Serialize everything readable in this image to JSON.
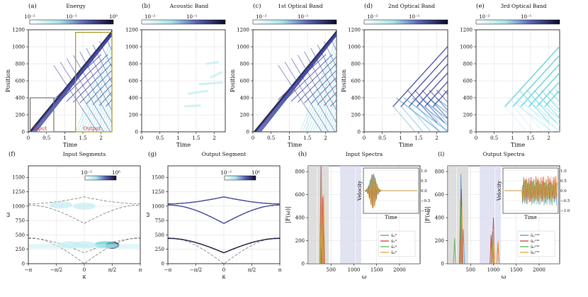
{
  "colors": {
    "dark": "#0d0d30",
    "mid": "#3a3f9e",
    "light": "#5fd0d8",
    "faint": "#c6eef2",
    "red": "#cc3333",
    "grid": "#dcdcdc",
    "shade_gray": "#d6d6d6",
    "shade_blue": "#d9dcf0"
  },
  "chart_data": [
    {
      "id": "a",
      "panel_label": "(a)",
      "title": "Energy",
      "type": "heatmap",
      "colorbar": {
        "ticks": [
          "10⁻²",
          "10⁻¹",
          "10⁰"
        ],
        "scale": "log",
        "range": [
          0.01,
          1
        ]
      },
      "xlabel": "Time",
      "ylabel": "Position",
      "xlim": [
        0,
        2.3
      ],
      "ylim": [
        0,
        1200
      ],
      "xticks": [
        "0",
        "0.5",
        "1",
        "1.5",
        "2"
      ],
      "yticks": [
        "0",
        "200",
        "400",
        "600",
        "800",
        "1000",
        "1200"
      ],
      "annotations": [
        "Input",
        "Output"
      ],
      "boxes": [
        {
          "t0": 0.05,
          "t1": 0.7,
          "p0": 0,
          "p1": 400,
          "color": "gray"
        },
        {
          "t0": 1.3,
          "t1": 2.3,
          "p0": 0,
          "p1": 1170,
          "color": "olive"
        }
      ]
    },
    {
      "id": "b",
      "panel_label": "(b)",
      "title": "Acoustic Band",
      "type": "heatmap",
      "colorbar": {
        "ticks": [
          "10⁻²",
          "10⁻¹"
        ],
        "scale": "log"
      },
      "xlabel": "Time",
      "ylabel": "",
      "xlim": [
        0,
        2.3
      ],
      "ylim": [
        0,
        1200
      ],
      "xticks": [
        "0",
        "0.5",
        "1",
        "1.5",
        "2"
      ],
      "yticks": [
        "0",
        "200",
        "400",
        "600",
        "800",
        "1000",
        "1200"
      ]
    },
    {
      "id": "c",
      "panel_label": "(c)",
      "title": "1st Optical Band",
      "type": "heatmap",
      "colorbar": {
        "ticks": [
          "10⁻²",
          "10⁻¹"
        ],
        "scale": "log"
      },
      "xlabel": "Time",
      "ylabel": "Position",
      "xlim": [
        0,
        2.3
      ],
      "ylim": [
        0,
        1200
      ],
      "xticks": [
        "0",
        "0.5",
        "1",
        "1.5",
        "2"
      ],
      "yticks": [
        "0",
        "200",
        "400",
        "600",
        "800",
        "1000",
        "1200"
      ]
    },
    {
      "id": "d",
      "panel_label": "(d)",
      "title": "2nd Optical Band",
      "type": "heatmap",
      "colorbar": {
        "ticks": [
          "10⁻²",
          "10⁻¹"
        ],
        "scale": "log"
      },
      "xlabel": "Time",
      "ylabel": "Position",
      "xlim": [
        0,
        2.3
      ],
      "ylim": [
        0,
        1200
      ],
      "xticks": [
        "0",
        "0.5",
        "1",
        "1.5",
        "2"
      ],
      "yticks": [
        "0",
        "200",
        "400",
        "600",
        "800",
        "1000",
        "1200"
      ]
    },
    {
      "id": "e",
      "panel_label": "(e)",
      "title": "3rd Optical Band",
      "type": "heatmap",
      "colorbar": {
        "ticks": [
          "10⁻²",
          "10⁻¹"
        ],
        "scale": "log"
      },
      "xlabel": "Time",
      "ylabel": "",
      "xlim": [
        0,
        2.3
      ],
      "ylim": [
        0,
        1200
      ],
      "xticks": [
        "0",
        "0.5",
        "1",
        "1.5",
        "2"
      ],
      "yticks": [
        "0",
        "200",
        "400",
        "600",
        "800",
        "1000",
        "1200"
      ]
    },
    {
      "id": "f",
      "panel_label": "(f)",
      "title": "Input Segments",
      "type": "heatmap",
      "colorbar": {
        "ticks": [
          "10⁻²",
          "10⁶"
        ],
        "scale": "log"
      },
      "xlabel": "κ",
      "ylabel": "ω",
      "xlim": [
        -3.1416,
        3.1416
      ],
      "ylim": [
        0,
        1700
      ],
      "xticks": [
        "−π",
        "−π/2",
        "0",
        "π/2",
        "π"
      ],
      "yticks": [
        "0",
        "250",
        "500",
        "750",
        "1000",
        "1250",
        "1500"
      ],
      "dispersion_bands": [
        {
          "at_zero": 0,
          "at_pi": 450
        },
        {
          "at_zero": 190,
          "at_pi": 440
        },
        {
          "at_zero": 700,
          "at_pi": 1020
        },
        {
          "at_zero": 1160,
          "at_pi": 1040
        }
      ],
      "hotspots": [
        {
          "kappa": 1.57,
          "omega": 320,
          "level": "dark"
        },
        {
          "kappa": 1.2,
          "omega": 330,
          "level": "light"
        },
        {
          "kappa": 0.0,
          "omega": 330,
          "level": "faint"
        },
        {
          "kappa": -0.8,
          "omega": 330,
          "level": "faint"
        },
        {
          "kappa": 0.0,
          "omega": 1000,
          "level": "faint"
        },
        {
          "kappa": -1.3,
          "omega": 1020,
          "level": "faint"
        }
      ]
    },
    {
      "id": "g",
      "panel_label": "(g)",
      "title": "Output Segment",
      "type": "heatmap",
      "colorbar": {
        "ticks": [
          "10⁻²",
          "10⁶"
        ],
        "scale": "log"
      },
      "xlabel": "κ",
      "ylabel": "ω",
      "xlim": [
        -3.1416,
        3.1416
      ],
      "ylim": [
        0,
        1700
      ],
      "xticks": [
        "−π",
        "−π/2",
        "0",
        "π/2",
        "π"
      ],
      "yticks": [
        "0",
        "250",
        "500",
        "750",
        "1000",
        "1250",
        "1500"
      ]
    },
    {
      "id": "h",
      "panel_label": "(h)",
      "title": "Input Spectra",
      "type": "line",
      "xlabel": "ω",
      "ylabel": "|F(ω)|",
      "xlim": [
        0,
        2450
      ],
      "ylim": [
        0,
        850
      ],
      "xticks": [
        "500",
        "1000",
        "1500",
        "2000"
      ],
      "yticks": [
        "0",
        "200",
        "400",
        "600",
        "800"
      ],
      "shaded_bands": [
        {
          "from": 0,
          "to": 190,
          "color": "gray"
        },
        {
          "from": 200,
          "to": 450,
          "color": "gray"
        },
        {
          "from": 700,
          "to": 1030,
          "color": "blue"
        },
        {
          "from": 1040,
          "to": 1160,
          "color": "blue"
        }
      ],
      "series": [
        {
          "name": "û₁⁰",
          "color": "#4c8fc7",
          "peaks": [
            [
              280,
              850
            ],
            [
              330,
              400
            ]
          ]
        },
        {
          "name": "û₂⁰",
          "color": "#cc3333",
          "peaks": [
            [
              285,
              850
            ],
            [
              320,
              580
            ]
          ]
        },
        {
          "name": "û₃⁰",
          "color": "#55aa55",
          "peaks": [
            [
              290,
              400
            ],
            [
              300,
              200
            ]
          ]
        },
        {
          "name": "û₄⁰",
          "color": "#f0a030",
          "peaks": [
            [
              290,
              850
            ],
            [
              340,
              600
            ]
          ]
        }
      ],
      "inset": {
        "xlabel": "Time",
        "ylabel": "Velocity",
        "yticks": [
          "1.0",
          "0.5",
          "0.0",
          "−0.5",
          "−1.0"
        ],
        "ylim": [
          -1,
          1
        ]
      }
    },
    {
      "id": "i",
      "panel_label": "(i)",
      "title": "Output Spectra",
      "type": "line",
      "xlabel": "ω",
      "ylabel": "|F(ω)|",
      "xlim": [
        0,
        2450
      ],
      "ylim": [
        0,
        850
      ],
      "xticks": [
        "500",
        "1000",
        "1500",
        "2000"
      ],
      "yticks": [
        "0",
        "200",
        "400",
        "600",
        "800"
      ],
      "shaded_bands": [
        {
          "from": 0,
          "to": 190,
          "color": "gray"
        },
        {
          "from": 200,
          "to": 450,
          "color": "gray"
        },
        {
          "from": 700,
          "to": 1030,
          "color": "blue"
        },
        {
          "from": 1040,
          "to": 1160,
          "color": "blue"
        }
      ],
      "series": [
        {
          "name": "û₁¹⁵⁰",
          "color": "#4c8fc7",
          "peaks": [
            [
              290,
              780
            ],
            [
              340,
              300
            ],
            [
              980,
              280
            ]
          ]
        },
        {
          "name": "û₂¹⁵⁰",
          "color": "#cc3333",
          "peaks": [
            [
              300,
              650
            ],
            [
              1000,
              400
            ],
            [
              950,
              250
            ],
            [
              1100,
              180
            ]
          ]
        },
        {
          "name": "û₃¹⁵⁰",
          "color": "#55aa55",
          "peaks": [
            [
              280,
              560
            ],
            [
              150,
              220
            ],
            [
              980,
              200
            ]
          ]
        },
        {
          "name": "û₄¹⁵⁰",
          "color": "#f0a030",
          "peaks": [
            [
              310,
              500
            ],
            [
              1000,
              300
            ],
            [
              1100,
              200
            ]
          ]
        }
      ],
      "inset": {
        "xlabel": "Time",
        "ylabel": "Velocity",
        "yticks": [
          "1.0",
          "0.5",
          "0.0",
          "−0.5",
          "−1.0"
        ],
        "ylim": [
          -1,
          1
        ]
      }
    }
  ]
}
